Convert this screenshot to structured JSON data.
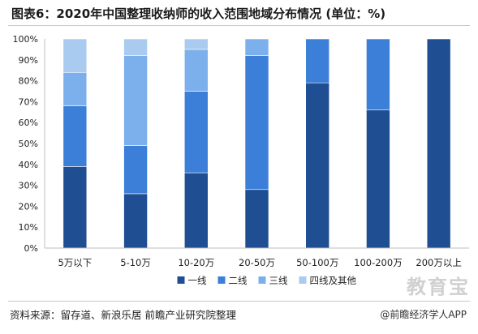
{
  "header": {
    "title": "图表6：2020年中国整理收纳师的收入范围地域分布情况 (单位：%)"
  },
  "footer": {
    "source": "资料来源：留存道、新浪乐居 前瞻产业研究院整理",
    "credit": "@前瞻经济学人APP",
    "watermark_logo": "教育宝"
  },
  "colors": {
    "tier1": "#1f4e93",
    "tier2": "#3b7fd8",
    "tier3": "#7bb0ec",
    "tier4": "#a9cbef",
    "axis": "#bfbfbf",
    "text": "#222222"
  },
  "chart_data": {
    "type": "bar",
    "stacked": true,
    "title": "图表6：2020年中国整理收纳师的收入范围地域分布情况 (单位：%)",
    "xlabel": "",
    "ylabel": "",
    "ylim": [
      0,
      100
    ],
    "yticks": [
      "0%",
      "10%",
      "20%",
      "30%",
      "40%",
      "50%",
      "60%",
      "70%",
      "80%",
      "90%",
      "100%"
    ],
    "categories": [
      "5万以下",
      "5-10万",
      "10-20万",
      "20-50万",
      "50-100万",
      "100-200万",
      "200万以上"
    ],
    "series": [
      {
        "name": "一线",
        "color": "#1f4e93",
        "values": [
          39,
          26,
          36,
          28,
          79,
          66,
          100
        ]
      },
      {
        "name": "二线",
        "color": "#3b7fd8",
        "values": [
          29,
          23,
          39,
          64,
          21,
          34,
          0
        ]
      },
      {
        "name": "三线",
        "color": "#7bb0ec",
        "values": [
          16,
          43,
          20,
          8,
          0,
          0,
          0
        ]
      },
      {
        "name": "四线及其他",
        "color": "#a9cbef",
        "values": [
          16,
          8,
          5,
          0,
          0,
          0,
          0
        ]
      }
    ],
    "legend_position": "bottom",
    "grid": false
  }
}
